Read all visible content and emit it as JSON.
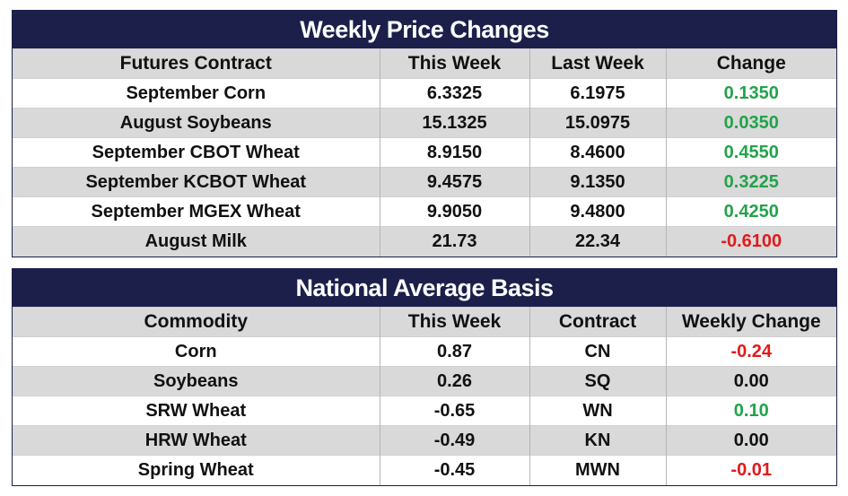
{
  "price_table": {
    "title": "Weekly Price Changes",
    "headers": [
      "Futures Contract",
      "This Week",
      "Last Week",
      "Change"
    ],
    "rows": [
      {
        "contract": "September Corn",
        "this_week": "6.3325",
        "last_week": "6.1975",
        "change": "0.1350",
        "direction": "pos"
      },
      {
        "contract": "August Soybeans",
        "this_week": "15.1325",
        "last_week": "15.0975",
        "change": "0.0350",
        "direction": "pos"
      },
      {
        "contract": "September CBOT Wheat",
        "this_week": "8.9150",
        "last_week": "8.4600",
        "change": "0.4550",
        "direction": "pos"
      },
      {
        "contract": "September KCBOT Wheat",
        "this_week": "9.4575",
        "last_week": "9.1350",
        "change": "0.3225",
        "direction": "pos"
      },
      {
        "contract": "September MGEX Wheat",
        "this_week": "9.9050",
        "last_week": "9.4800",
        "change": "0.4250",
        "direction": "pos"
      },
      {
        "contract": "August Milk",
        "this_week": "21.73",
        "last_week": "22.34",
        "change": "-0.6100",
        "direction": "neg"
      }
    ]
  },
  "basis_table": {
    "title": "National Average Basis",
    "headers": [
      "Commodity",
      "This Week",
      "Contract",
      "Weekly Change"
    ],
    "rows": [
      {
        "commodity": "Corn",
        "this_week": "0.87",
        "contract": "CN",
        "change": "-0.24",
        "direction": "neg"
      },
      {
        "commodity": "Soybeans",
        "this_week": "0.26",
        "contract": "SQ",
        "change": "0.00",
        "direction": "neu"
      },
      {
        "commodity": "SRW Wheat",
        "this_week": "-0.65",
        "contract": "WN",
        "change": "0.10",
        "direction": "pos"
      },
      {
        "commodity": "HRW Wheat",
        "this_week": "-0.49",
        "contract": "KN",
        "change": "0.00",
        "direction": "neu"
      },
      {
        "commodity": "Spring Wheat",
        "this_week": "-0.45",
        "contract": "MWN",
        "change": "-0.01",
        "direction": "neg"
      }
    ]
  },
  "colors": {
    "header_bg": "#1b1f4a",
    "band": "#d9d9d9",
    "positive": "#22a34a",
    "negative": "#e01b1b",
    "neutral": "#111111"
  }
}
